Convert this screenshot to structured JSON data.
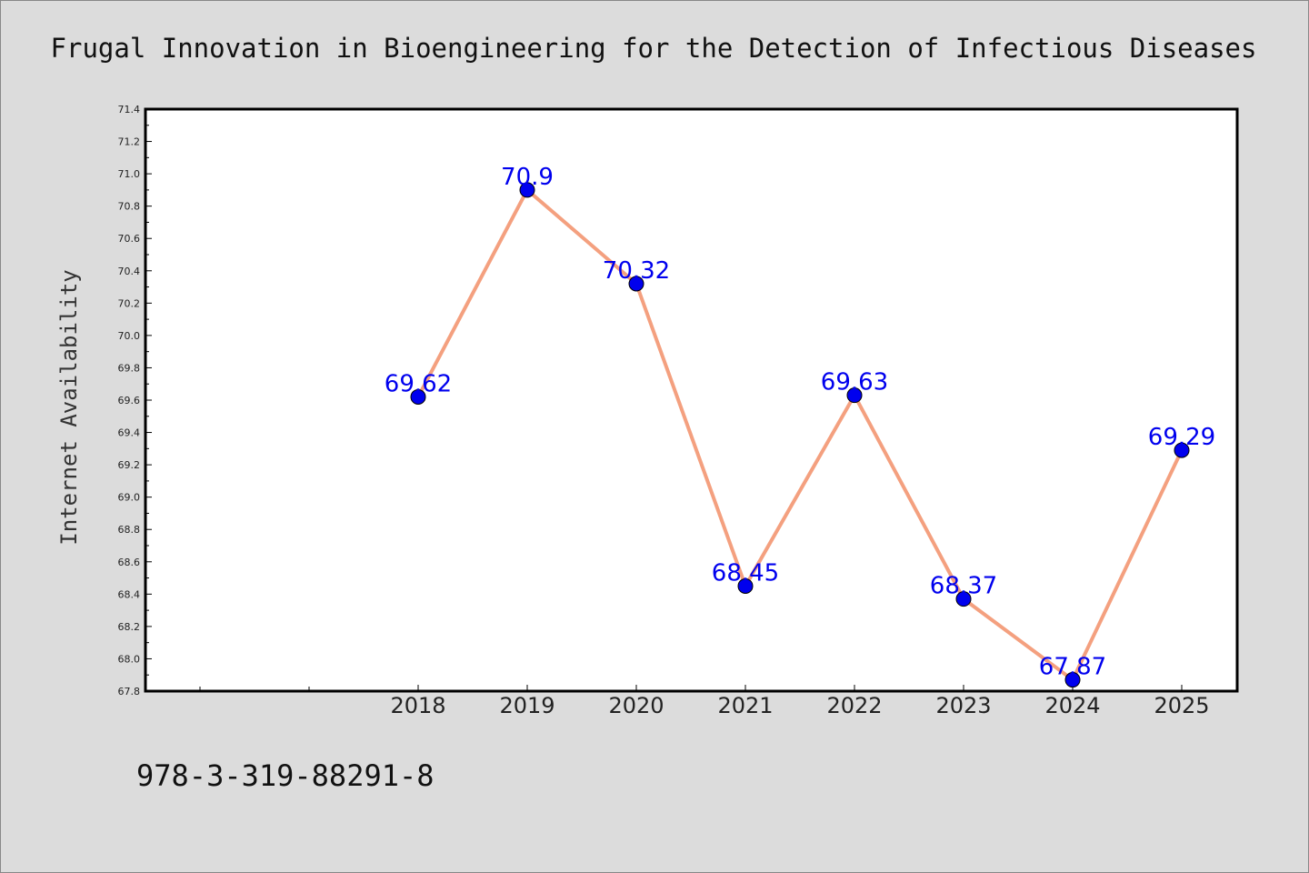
{
  "chart_data": {
    "type": "line",
    "title": "Frugal Innovation in Bioengineering for the Detection of Infectious Diseases",
    "xlabel": "",
    "ylabel": "Internet Availability",
    "categories": [
      "2018",
      "2019",
      "2020",
      "2021",
      "2022",
      "2023",
      "2024",
      "2025"
    ],
    "series": [
      {
        "values": [
          69.62,
          70.9,
          70.32,
          68.45,
          69.63,
          68.37,
          67.87,
          69.29
        ]
      }
    ],
    "data_labels": [
      "69.62",
      "70.9",
      "70.32",
      "68.45",
      "69.63",
      "68.37",
      "67.87",
      "69.29"
    ],
    "ylim": [
      67.8,
      71.4
    ],
    "yticks": [
      "67.8",
      "68.0",
      "68.2",
      "68.4",
      "68.6",
      "68.8",
      "69.0",
      "69.2",
      "69.4",
      "69.6",
      "69.8",
      "70.0",
      "70.2",
      "70.4",
      "70.6",
      "70.8",
      "71.0",
      "71.2",
      "71.4"
    ],
    "grid": false,
    "line_color": "#f4a07f",
    "marker_color": "#0000ee",
    "label_color": "#0000ee"
  },
  "footer": {
    "isbn": "978-3-319-88291-8"
  }
}
